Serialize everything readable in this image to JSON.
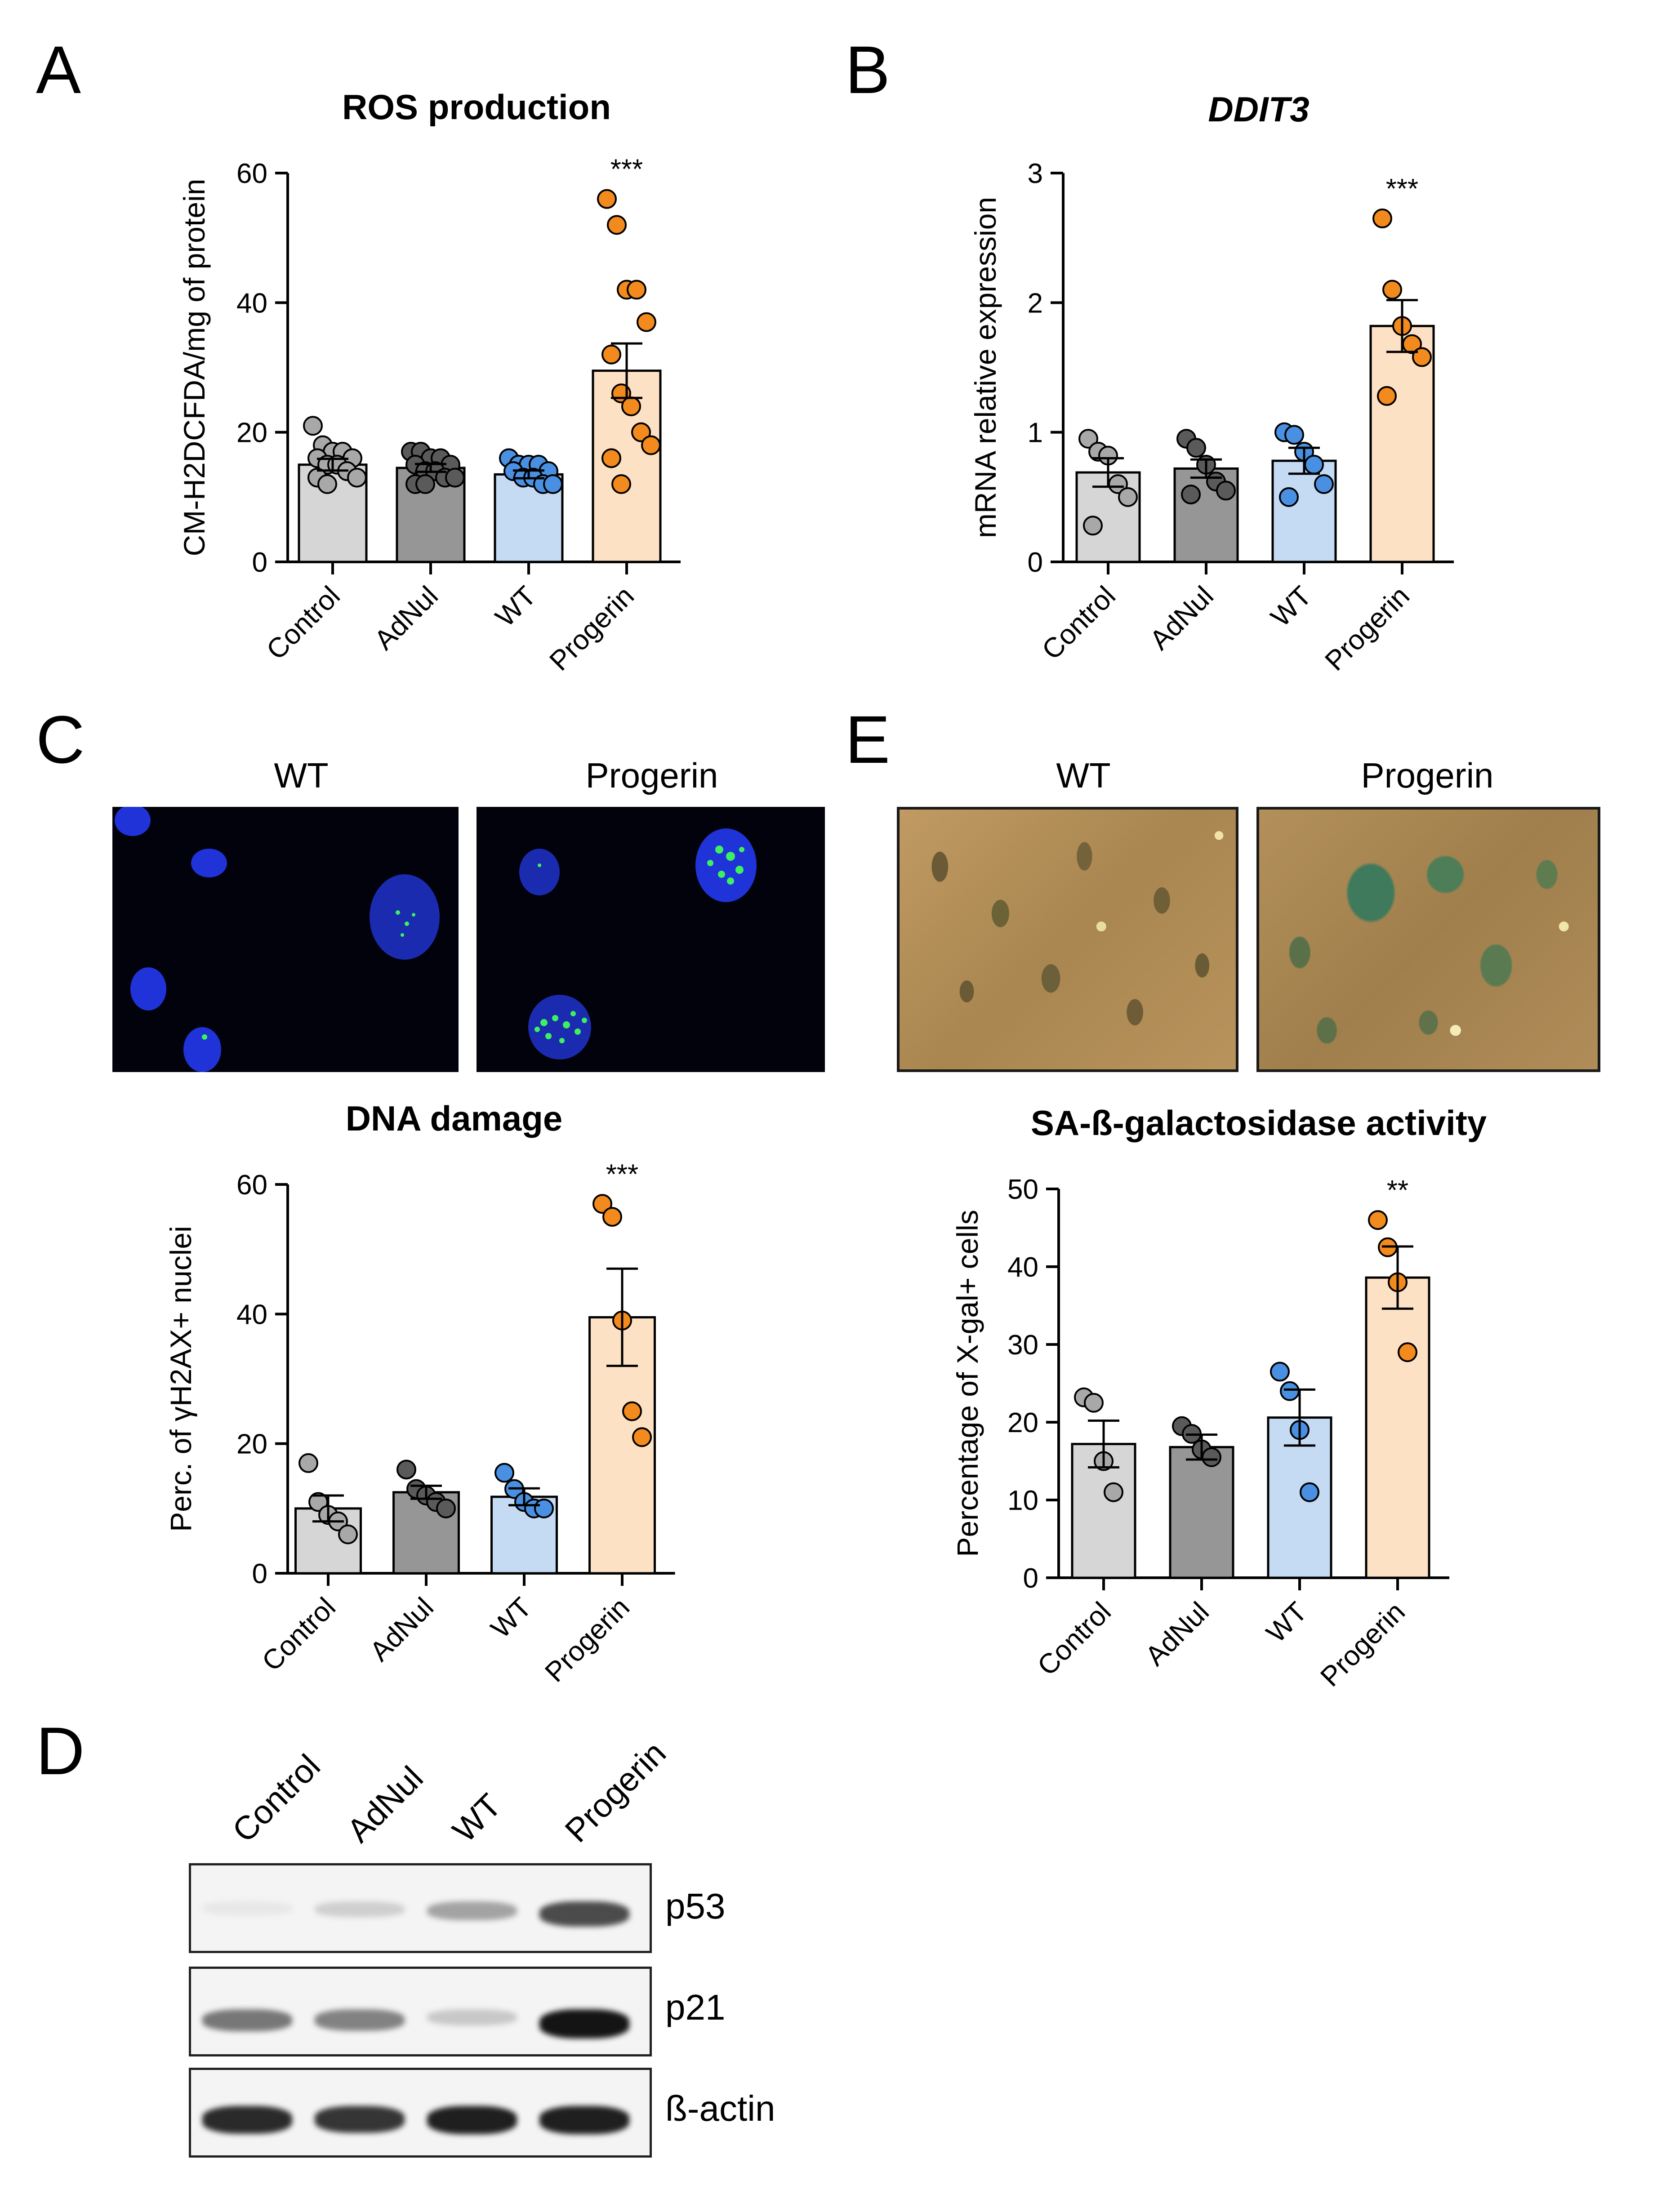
{
  "panels": {
    "A": "A",
    "B": "B",
    "C": "C",
    "D": "D",
    "E": "E"
  },
  "images": {
    "C": {
      "left_label": "WT",
      "right_label": "Progerin"
    },
    "E": {
      "left_label": "WT",
      "right_label": "Progerin"
    }
  },
  "western_blot": {
    "lanes": [
      "Control",
      "AdNul",
      "WT",
      "Progerin"
    ],
    "rows": [
      {
        "label": "p53",
        "intensities": [
          0.04,
          0.15,
          0.35,
          0.75
        ]
      },
      {
        "label": "p21",
        "intensities": [
          0.55,
          0.5,
          0.18,
          1.0
        ]
      },
      {
        "label": "ß-actin",
        "intensities": [
          0.9,
          0.85,
          0.95,
          0.95
        ]
      }
    ]
  },
  "colors": {
    "Control": {
      "fill": "#d6d6d6",
      "dot": "#a8a8a8"
    },
    "AdNul": {
      "fill": "#969696",
      "dot": "#5a5a5a"
    },
    "WT": {
      "fill": "#c5daf3",
      "dot": "#4a90e2"
    },
    "Progerin": {
      "fill": "#fde1c4",
      "dot": "#f28a1d"
    },
    "foci": "#3cf060",
    "nuclei": "#1f33d8"
  },
  "chart_data": [
    {
      "id": "A",
      "type": "bar",
      "title": "ROS production",
      "ylabel": "CM-H2DCFDA/mg of protein",
      "categories": [
        "Control",
        "AdNul",
        "WT",
        "Progerin"
      ],
      "ylim": [
        0,
        60
      ],
      "yticks": [
        0,
        20,
        40,
        60
      ],
      "values": [
        15,
        14.5,
        13.5,
        29.5
      ],
      "sem": [
        0.9,
        0.6,
        0.6,
        4.2
      ],
      "points": [
        [
          21,
          18,
          17,
          17,
          16,
          16,
          15,
          15,
          14,
          13,
          13,
          12
        ],
        [
          17,
          17,
          16,
          16,
          15,
          15,
          14,
          14,
          13,
          13,
          12,
          12
        ],
        [
          16,
          15,
          15,
          15,
          14,
          14,
          13,
          13,
          12,
          12
        ],
        [
          56,
          52,
          42,
          42,
          37,
          32,
          26,
          24,
          20,
          18,
          16,
          12
        ]
      ],
      "significance": [
        "",
        "",
        "",
        "***"
      ],
      "title_italic": false
    },
    {
      "id": "B",
      "type": "bar",
      "title": "DDIT3",
      "ylabel": "mRNA relative expression",
      "categories": [
        "Control",
        "AdNul",
        "WT",
        "Progerin"
      ],
      "ylim": [
        0,
        3
      ],
      "yticks": [
        0,
        1,
        2,
        3
      ],
      "values": [
        0.69,
        0.72,
        0.78,
        1.82
      ],
      "sem": [
        0.11,
        0.07,
        0.1,
        0.2
      ],
      "points": [
        [
          0.95,
          0.85,
          0.82,
          0.6,
          0.5,
          0.28
        ],
        [
          0.95,
          0.88,
          0.75,
          0.62,
          0.55,
          0.52
        ],
        [
          1.0,
          0.98,
          0.85,
          0.75,
          0.6,
          0.5
        ],
        [
          2.65,
          2.1,
          1.82,
          1.68,
          1.58,
          1.28
        ]
      ],
      "significance": [
        "",
        "",
        "",
        "***"
      ],
      "title_italic": true
    },
    {
      "id": "C",
      "type": "bar",
      "title": "DNA damage",
      "ylabel": "Perc. of γH2AX+ nuclei",
      "categories": [
        "Control",
        "AdNul",
        "WT",
        "Progerin"
      ],
      "ylim": [
        0,
        60
      ],
      "yticks": [
        0,
        20,
        40,
        60
      ],
      "values": [
        10,
        12.5,
        11.8,
        39.5
      ],
      "sem": [
        2.0,
        1.0,
        1.3,
        7.5
      ],
      "points": [
        [
          17,
          11,
          9,
          8,
          6
        ],
        [
          16,
          13,
          12,
          11,
          10
        ],
        [
          15.5,
          13,
          11,
          10,
          10
        ],
        [
          57,
          55,
          39,
          25,
          21
        ]
      ],
      "significance": [
        "",
        "",
        "",
        "***"
      ],
      "title_italic": false
    },
    {
      "id": "E",
      "type": "bar",
      "title": "SA-ß-galactosidase activity",
      "ylabel": "Percentage of X-gal+ cells",
      "categories": [
        "Control",
        "AdNul",
        "WT",
        "Progerin"
      ],
      "ylim": [
        0,
        50
      ],
      "yticks": [
        0,
        10,
        20,
        30,
        40,
        50
      ],
      "values": [
        17.2,
        16.8,
        20.6,
        38.6
      ],
      "sem": [
        3.0,
        1.6,
        3.6,
        4.0
      ],
      "points": [
        [
          23.2,
          22.5,
          15,
          11
        ],
        [
          19.5,
          18.5,
          16.5,
          15.5
        ],
        [
          26.5,
          24,
          19,
          11
        ],
        [
          46,
          42.5,
          38,
          29
        ]
      ],
      "significance": [
        "",
        "",
        "",
        "**"
      ],
      "title_italic": false
    }
  ]
}
